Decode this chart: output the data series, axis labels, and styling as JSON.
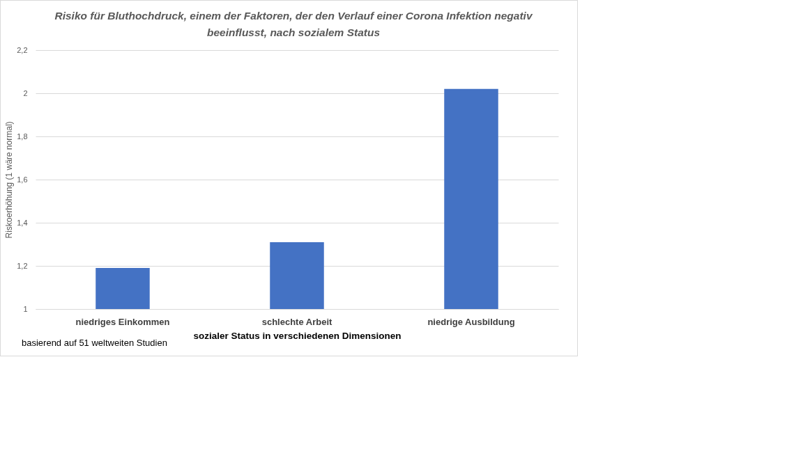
{
  "chart_data": {
    "type": "bar",
    "title": "Risiko für Bluthochdruck, einem der Faktoren, der den Verlauf einer Corona Infektion negativ beeinflusst, nach sozialem Status",
    "xlabel": "sozialer Status in verschiedenen Dimensionen",
    "ylabel": "Riskoerhöhung  (1 wäre normal)",
    "annotations": [
      "basierend auf 51 weltweiten Studien"
    ],
    "categories": [
      "niedriges Einkommen",
      "schlechte Arbeit",
      "niedrige Ausbildung"
    ],
    "values": [
      1.19,
      1.31,
      2.02
    ],
    "color": "#4472c4",
    "ylim": [
      1,
      2.2
    ],
    "yticks": [
      1,
      {
        "value": 1.2,
        "label": "1,2"
      },
      {
        "value": 1.4,
        "label": "1,4"
      },
      {
        "value": 1.6,
        "label": "1,6"
      },
      {
        "value": 1.8,
        "label": "1,8"
      },
      2,
      {
        "value": 2.2,
        "label": "2,2"
      }
    ],
    "grid": "y"
  }
}
